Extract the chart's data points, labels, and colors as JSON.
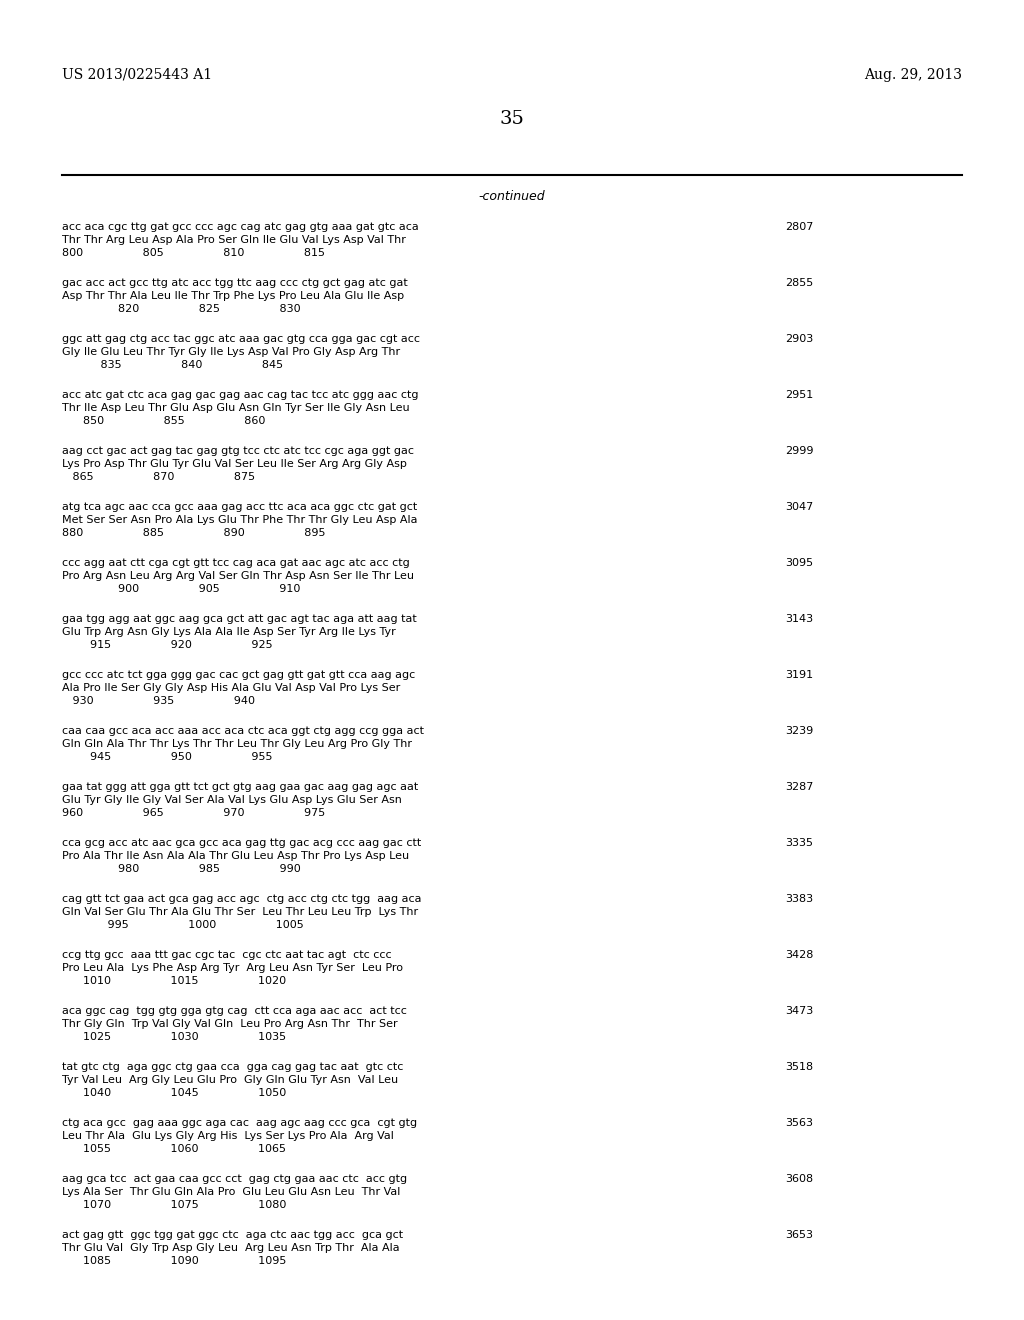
{
  "page_number": "35",
  "patent_number": "US 2013/0225443 A1",
  "patent_date": "Aug. 29, 2013",
  "continued_label": "-continued",
  "background_color": "#ffffff",
  "text_color": "#000000",
  "sequences": [
    {
      "dna": "acc aca cgc ttg gat gcc ccc agc cag atc gag gtg aaa gat gtc aca",
      "aa": "Thr Thr Arg Leu Asp Ala Pro Ser Gln Ile Glu Val Lys Asp Val Thr",
      "nums": "800                 805                 810                 815",
      "num_right": "2807"
    },
    {
      "dna": "gac acc act gcc ttg atc acc tgg ttc aag ccc ctg gct gag atc gat",
      "aa": "Asp Thr Thr Ala Leu Ile Thr Trp Phe Lys Pro Leu Ala Glu Ile Asp",
      "nums": "                820                 825                 830",
      "num_right": "2855"
    },
    {
      "dna": "ggc att gag ctg acc tac ggc atc aaa gac gtg cca gga gac cgt acc",
      "aa": "Gly Ile Glu Leu Thr Tyr Gly Ile Lys Asp Val Pro Gly Asp Arg Thr",
      "nums": "           835                 840                 845",
      "num_right": "2903"
    },
    {
      "dna": "acc atc gat ctc aca gag gac gag aac cag tac tcc atc ggg aac ctg",
      "aa": "Thr Ile Asp Leu Thr Glu Asp Glu Asn Gln Tyr Ser Ile Gly Asn Leu",
      "nums": "      850                 855                 860",
      "num_right": "2951"
    },
    {
      "dna": "aag cct gac act gag tac gag gtg tcc ctc atc tcc cgc aga ggt gac",
      "aa": "Lys Pro Asp Thr Glu Tyr Glu Val Ser Leu Ile Ser Arg Arg Gly Asp",
      "nums": "   865                 870                 875",
      "num_right": "2999"
    },
    {
      "dna": "atg tca agc aac cca gcc aaa gag acc ttc aca aca ggc ctc gat gct",
      "aa": "Met Ser Ser Asn Pro Ala Lys Glu Thr Phe Thr Thr Gly Leu Asp Ala",
      "nums": "880                 885                 890                 895",
      "num_right": "3047"
    },
    {
      "dna": "ccc agg aat ctt cga cgt gtt tcc cag aca gat aac agc atc acc ctg",
      "aa": "Pro Arg Asn Leu Arg Arg Val Ser Gln Thr Asp Asn Ser Ile Thr Leu",
      "nums": "                900                 905                 910",
      "num_right": "3095"
    },
    {
      "dna": "gaa tgg agg aat ggc aag gca gct att gac agt tac aga att aag tat",
      "aa": "Glu Trp Arg Asn Gly Lys Ala Ala Ile Asp Ser Tyr Arg Ile Lys Tyr",
      "nums": "        915                 920                 925",
      "num_right": "3143"
    },
    {
      "dna": "gcc ccc atc tct gga ggg gac cac gct gag gtt gat gtt cca aag agc",
      "aa": "Ala Pro Ile Ser Gly Gly Asp His Ala Glu Val Asp Val Pro Lys Ser",
      "nums": "   930                 935                 940",
      "num_right": "3191"
    },
    {
      "dna": "caa caa gcc aca acc aaa acc aca ctc aca ggt ctg agg ccg gga act",
      "aa": "Gln Gln Ala Thr Thr Lys Thr Thr Leu Thr Gly Leu Arg Pro Gly Thr",
      "nums": "        945                 950                 955",
      "num_right": "3239"
    },
    {
      "dna": "gaa tat ggg att gga gtt tct gct gtg aag gaa gac aag gag agc aat",
      "aa": "Glu Tyr Gly Ile Gly Val Ser Ala Val Lys Glu Asp Lys Glu Ser Asn",
      "nums": "960                 965                 970                 975",
      "num_right": "3287"
    },
    {
      "dna": "cca gcg acc atc aac gca gcc aca gag ttg gac acg ccc aag gac ctt",
      "aa": "Pro Ala Thr Ile Asn Ala Ala Thr Glu Leu Asp Thr Pro Lys Asp Leu",
      "nums": "                980                 985                 990",
      "num_right": "3335"
    },
    {
      "dna": "cag gtt tct gaa act gca gag acc agc  ctg acc ctg ctc tgg  aag aca",
      "aa": "Gln Val Ser Glu Thr Ala Glu Thr Ser  Leu Thr Leu Leu Trp  Lys Thr",
      "nums": "             995                 1000                 1005",
      "num_right": "3383"
    },
    {
      "dna": "ccg ttg gcc  aaa ttt gac cgc tac  cgc ctc aat tac agt  ctc ccc",
      "aa": "Pro Leu Ala  Lys Phe Asp Arg Tyr  Arg Leu Asn Tyr Ser  Leu Pro",
      "nums": "      1010                 1015                 1020",
      "num_right": "3428"
    },
    {
      "dna": "aca ggc cag  tgg gtg gga gtg cag  ctt cca aga aac acc  act tcc",
      "aa": "Thr Gly Gln  Trp Val Gly Val Gln  Leu Pro Arg Asn Thr  Thr Ser",
      "nums": "      1025                 1030                 1035",
      "num_right": "3473"
    },
    {
      "dna": "tat gtc ctg  aga ggc ctg gaa cca  gga cag gag tac aat  gtc ctc",
      "aa": "Tyr Val Leu  Arg Gly Leu Glu Pro  Gly Gln Glu Tyr Asn  Val Leu",
      "nums": "      1040                 1045                 1050",
      "num_right": "3518"
    },
    {
      "dna": "ctg aca gcc  gag aaa ggc aga cac  aag agc aag ccc gca  cgt gtg",
      "aa": "Leu Thr Ala  Glu Lys Gly Arg His  Lys Ser Lys Pro Ala  Arg Val",
      "nums": "      1055                 1060                 1065",
      "num_right": "3563"
    },
    {
      "dna": "aag gca tcc  act gaa caa gcc cct  gag ctg gaa aac ctc  acc gtg",
      "aa": "Lys Ala Ser  Thr Glu Gln Ala Pro  Glu Leu Glu Asn Leu  Thr Val",
      "nums": "      1070                 1075                 1080",
      "num_right": "3608"
    },
    {
      "dna": "act gag gtt  ggc tgg gat ggc ctc  aga ctc aac tgg acc  gca gct",
      "aa": "Thr Glu Val  Gly Trp Asp Gly Leu  Arg Leu Asn Trp Thr  Ala Ala",
      "nums": "      1085                 1090                 1095",
      "num_right": "3653"
    }
  ]
}
